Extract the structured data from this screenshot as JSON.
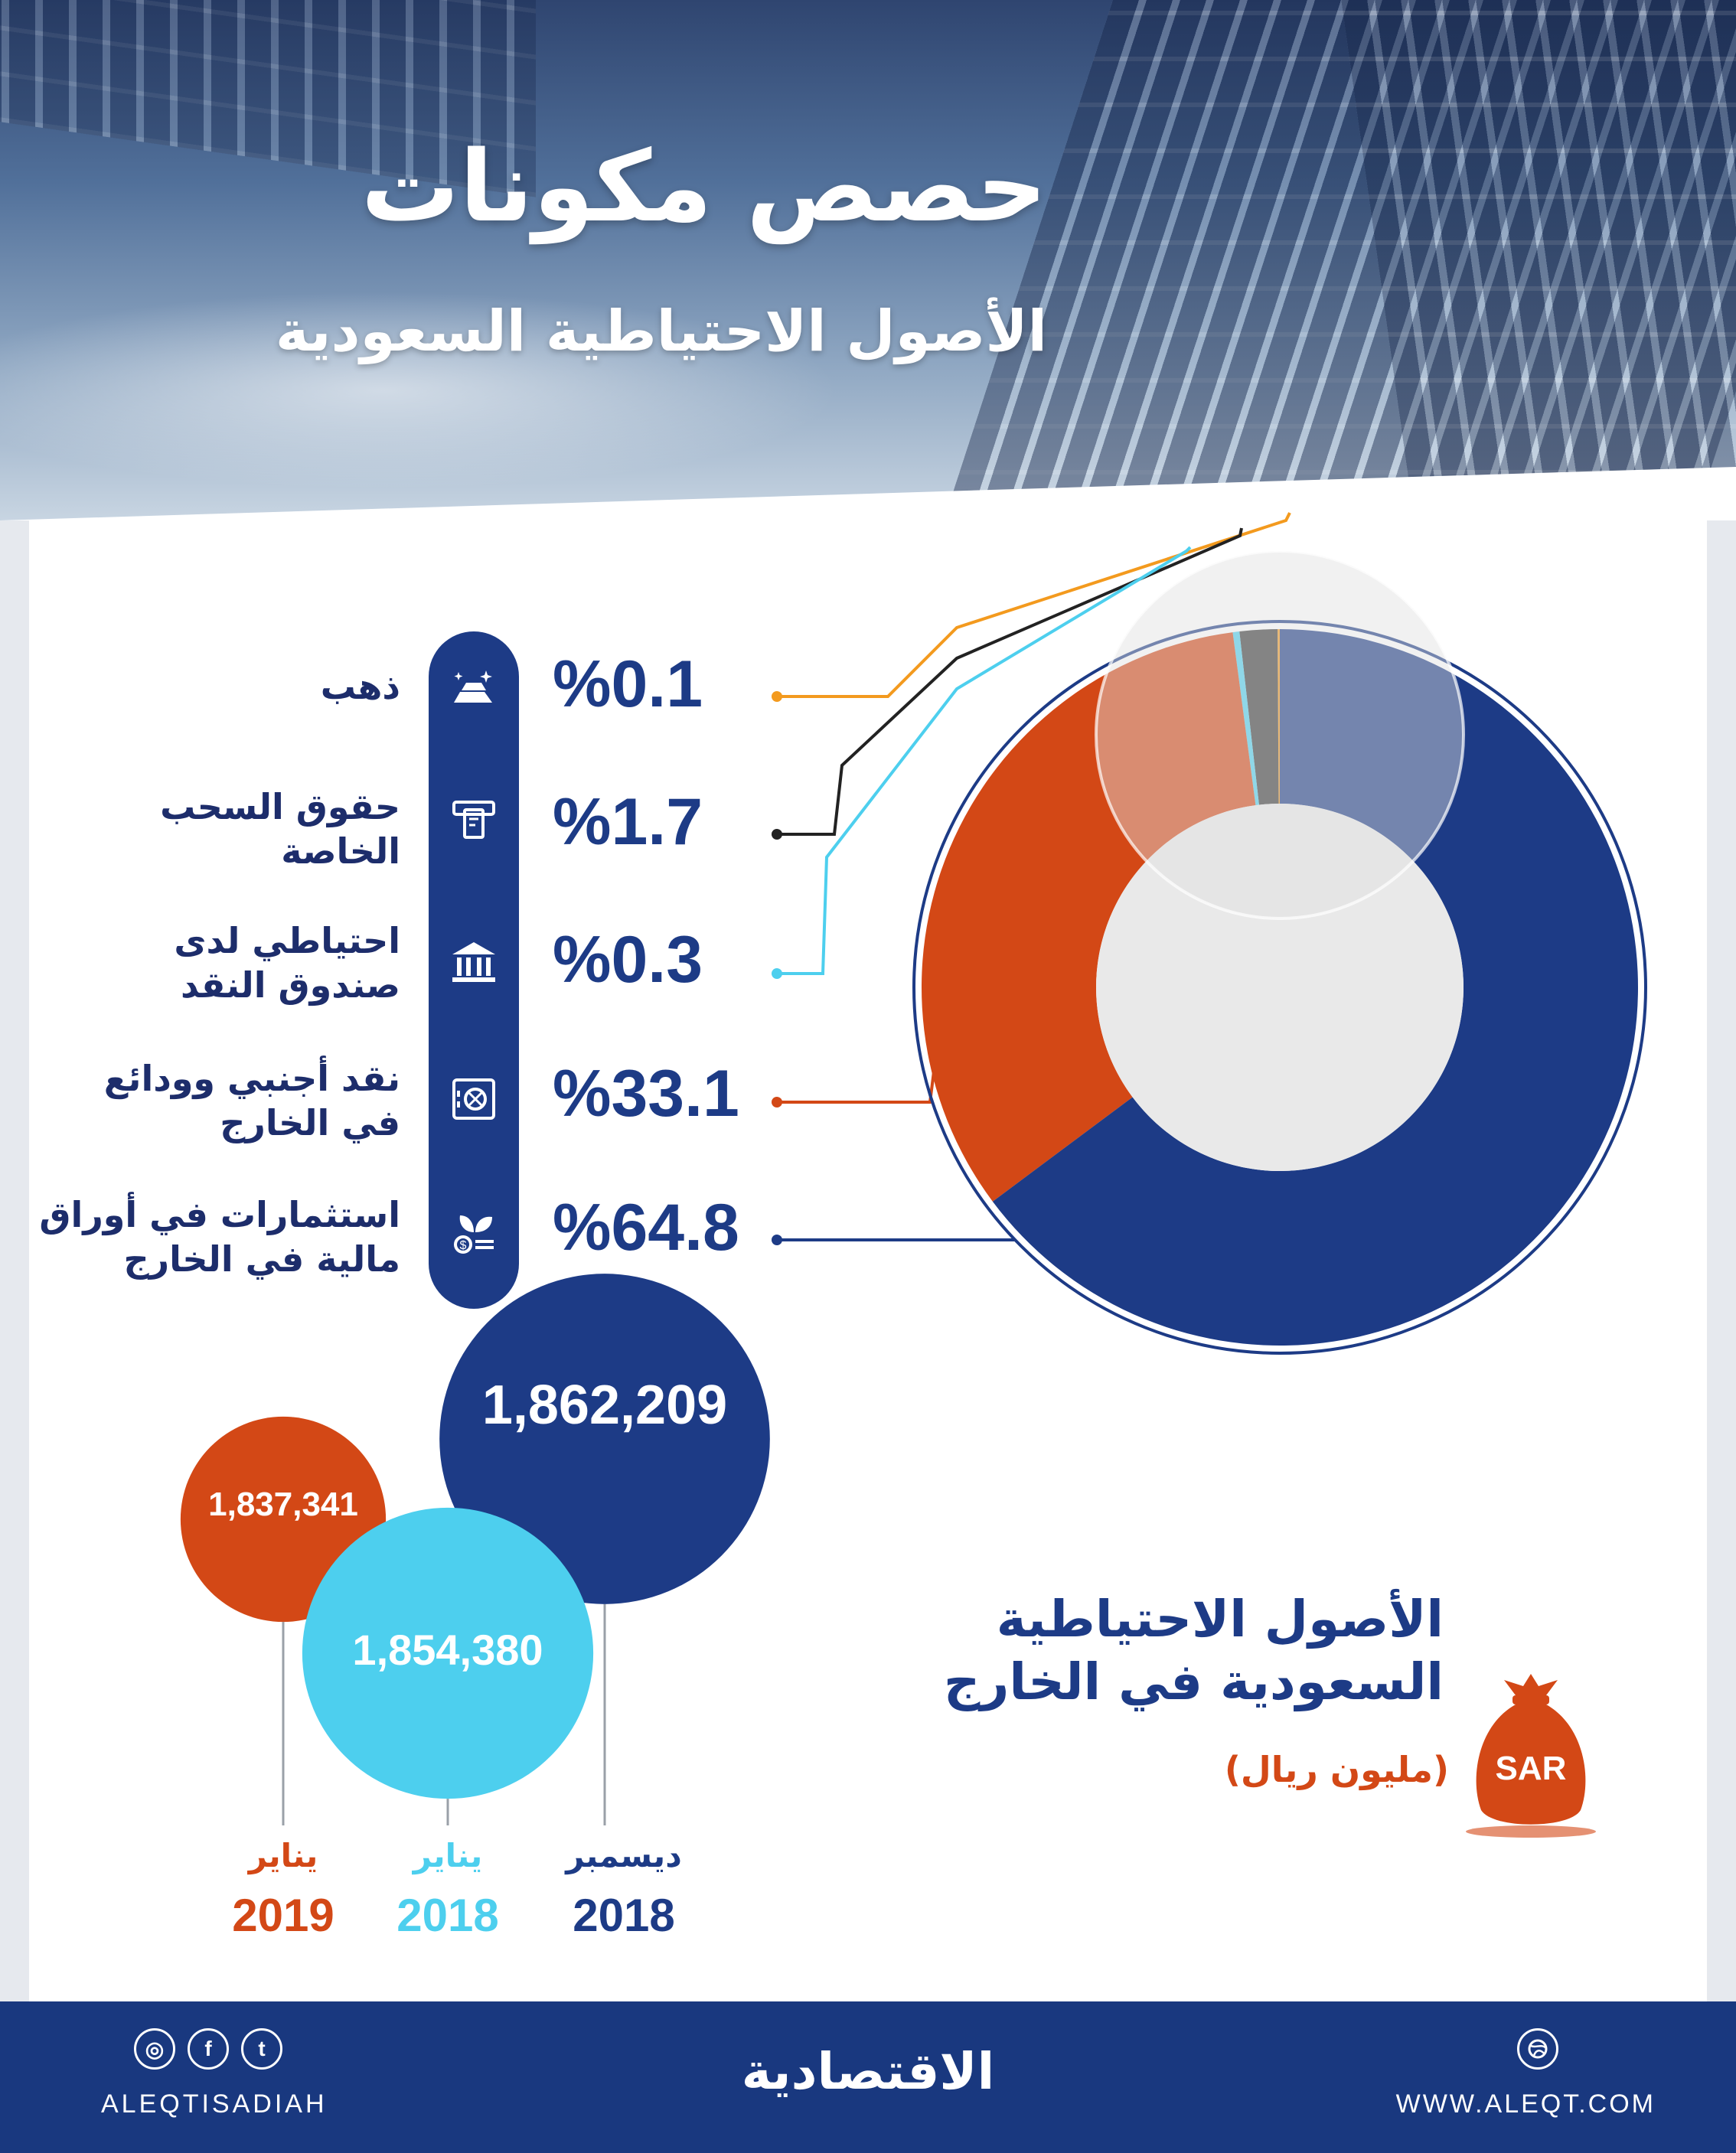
{
  "header": {
    "title": "حصص مكونات",
    "subtitle": "الأصول الاحتياطية السعودية"
  },
  "colors": {
    "navy": "#1d3b86",
    "orange": "#d34816",
    "cyan": "#4dcfee",
    "dark": "#3a3a3a",
    "gold": "#f39a1e"
  },
  "legend": [
    {
      "label": "ذهب",
      "percent": "%0.1",
      "icon": "gold-bars-icon"
    },
    {
      "label": "حقوق السحب\nالخاصة",
      "percent": "%1.7",
      "icon": "atm-card-icon"
    },
    {
      "label": "احتياطي لدى\nصندوق النقد",
      "percent": "%0.3",
      "icon": "bank-building-icon"
    },
    {
      "label": "نقد أجنبي وودائع\nفي الخارج",
      "percent": "%33.1",
      "icon": "safe-icon"
    },
    {
      "label": "استثمارات في أوراق\nمالية في الخارج",
      "percent": "%64.8",
      "icon": "plant-coin-icon"
    }
  ],
  "chart_data": [
    {
      "type": "pie",
      "categories": [
        "ذهب",
        "حقوق السحب الخاصة",
        "احتياطي لدى صندوق النقد",
        "نقد أجنبي وودائع في الخارج",
        "استثمارات في أوراق مالية في الخارج"
      ],
      "values": [
        0.1,
        1.7,
        0.3,
        33.1,
        64.8
      ],
      "colors": [
        "#f39a1e",
        "#3a3a3a",
        "#4dcfee",
        "#d34816",
        "#1d3b86"
      ]
    },
    {
      "type": "bubble",
      "title": "الأصول الاحتياطية\nالسعودية في الخارج",
      "unit": "(مليون ريال)",
      "categories": [
        "يناير 2019",
        "يناير 2018",
        "ديسمبر 2018"
      ],
      "points": [
        {
          "month": "يناير",
          "year": "2019",
          "value": 1837341,
          "label": "1,837,341",
          "color": "#d34816"
        },
        {
          "month": "يناير",
          "year": "2018",
          "value": 1854380,
          "label": "1,854,380",
          "color": "#4dcfee"
        },
        {
          "month": "ديسمبر",
          "year": "2018",
          "value": 1862209,
          "label": "1,862,209",
          "color": "#1d3b86"
        }
      ]
    }
  ],
  "money_bag": {
    "label": "SAR",
    "icon": "money-bag-icon"
  },
  "footer": {
    "handle": "ALEQTISADIAH",
    "brand": "الاقتصادية",
    "url": "WWW.ALEQT.COM",
    "social": [
      {
        "icon": "instagram-icon",
        "glyph": "◎"
      },
      {
        "icon": "facebook-icon",
        "glyph": "f"
      },
      {
        "icon": "twitter-icon",
        "glyph": "t"
      }
    ],
    "right_icon": "globe-icon"
  }
}
